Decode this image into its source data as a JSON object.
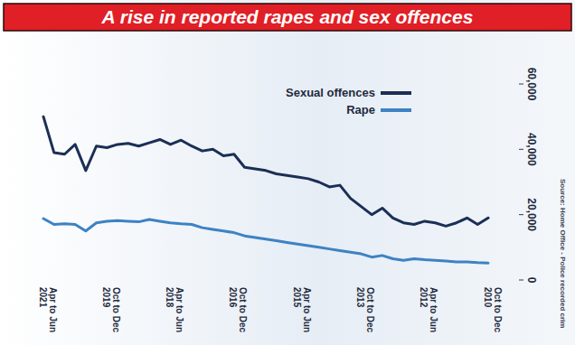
{
  "chart_data": {
    "type": "line",
    "title": "A rise in reported rapes and sex offences",
    "source": "Source: Home Office - Police recorded crim",
    "categories": [
      "Apr to Jun 2021",
      null,
      null,
      null,
      null,
      null,
      "Oct to Dec 2019",
      null,
      null,
      null,
      null,
      null,
      "Apr to Jun 2018",
      null,
      null,
      null,
      null,
      null,
      "Oct to Dec 2016",
      null,
      null,
      null,
      null,
      null,
      "Apr to Jun 2015",
      null,
      null,
      null,
      null,
      null,
      "Oct to Dec 2013",
      null,
      null,
      null,
      null,
      null,
      "Apr to Jun 2012",
      null,
      null,
      null,
      null,
      null,
      "Oct to Dec 2010"
    ],
    "series": [
      {
        "name": "Sexual offences",
        "color": "#1b2f55",
        "values": [
          50000,
          39000,
          38500,
          41500,
          33500,
          41000,
          40500,
          41500,
          41800,
          41000,
          42000,
          43000,
          41500,
          42800,
          41000,
          39500,
          40000,
          38000,
          38500,
          34500,
          34000,
          33500,
          32500,
          32000,
          31500,
          31000,
          30000,
          28500,
          29000,
          25000,
          22500,
          20000,
          22000,
          19000,
          17500,
          17000,
          18000,
          17500,
          16500,
          17500,
          19000,
          17000,
          19000
        ]
      },
      {
        "name": "Rape",
        "color": "#3d82c4",
        "values": [
          18800,
          17000,
          17200,
          17000,
          15000,
          17500,
          18000,
          18200,
          18000,
          17800,
          18500,
          18000,
          17500,
          17200,
          17000,
          16000,
          15500,
          15000,
          14500,
          13500,
          13000,
          12500,
          12000,
          11500,
          11000,
          10500,
          10000,
          9500,
          9000,
          8500,
          8000,
          7000,
          7500,
          6500,
          6000,
          6500,
          6200,
          6000,
          5800,
          5500,
          5500,
          5300,
          5200
        ]
      }
    ],
    "ylim": [
      0,
      60000
    ],
    "yticks": [
      0,
      {
        "value": 20000,
        "label": "20,000"
      },
      {
        "value": 40000,
        "label": "40,000"
      },
      {
        "value": 60000,
        "label": "60,000"
      }
    ],
    "grid": false,
    "legend": "top-right"
  }
}
